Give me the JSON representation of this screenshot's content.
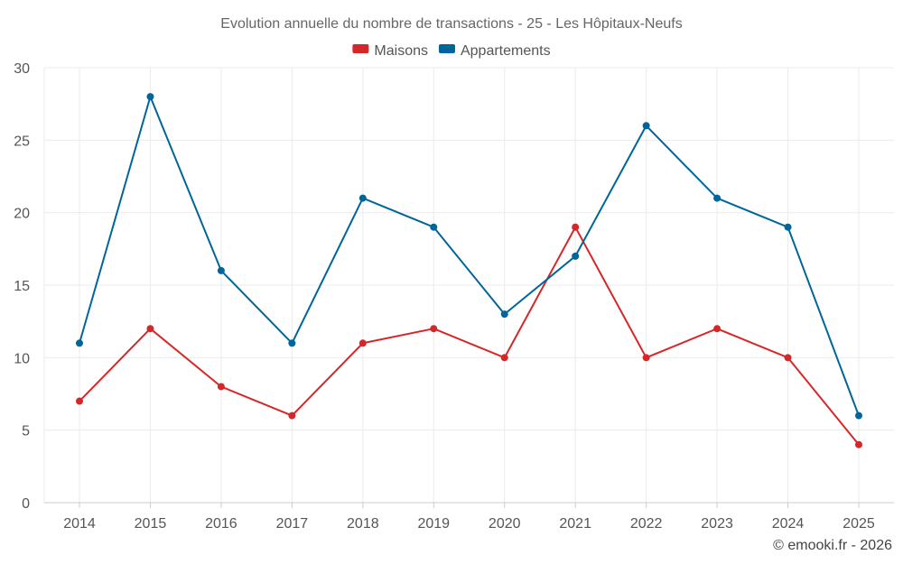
{
  "chart_data": {
    "type": "line",
    "title": "Evolution annuelle du nombre de transactions - 25 - Les Hôpitaux-Neufs",
    "categories": [
      "2014",
      "2015",
      "2016",
      "2017",
      "2018",
      "2019",
      "2020",
      "2021",
      "2022",
      "2023",
      "2024",
      "2025"
    ],
    "series": [
      {
        "name": "Maisons",
        "color": "#d62728",
        "values": [
          7,
          12,
          8,
          6,
          11,
          12,
          10,
          19,
          10,
          12,
          10,
          4
        ]
      },
      {
        "name": "Appartements",
        "color": "#006699",
        "values": [
          11,
          28,
          16,
          11,
          21,
          19,
          13,
          17,
          26,
          21,
          19,
          6
        ]
      }
    ],
    "ylim": [
      0,
      30
    ],
    "yticks": [
      "0",
      "5",
      "10",
      "15",
      "20",
      "25",
      "30"
    ],
    "xlabel": "",
    "ylabel": "",
    "grid": true,
    "legend_position": "top-center"
  },
  "credit": "© emooki.fr - 2026"
}
